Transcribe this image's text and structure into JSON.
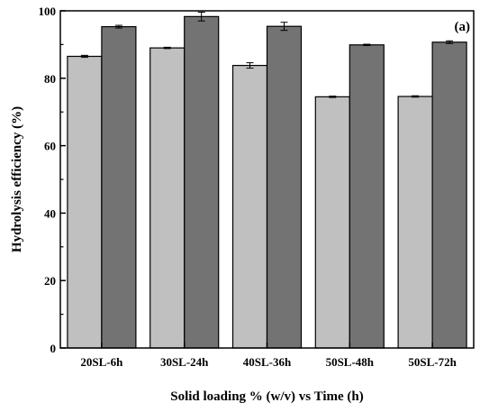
{
  "chart_data": {
    "type": "bar",
    "title": "",
    "panel_label": "(a)",
    "xlabel": "Solid loading % (w/v) vs Time (h)",
    "ylabel": "Hydrolysis efficiency (%)",
    "ylim": [
      0,
      100
    ],
    "yticks": [
      0,
      20,
      40,
      60,
      80,
      100
    ],
    "grid": false,
    "categories": [
      "20SL-6h",
      "30SL-24h",
      "40SL-36h",
      "50SL-48h",
      "50SL-72h"
    ],
    "series": [
      {
        "color": "#c0c0c0",
        "values": [
          86.5,
          89.0,
          83.8,
          74.5,
          74.6
        ],
        "errors": [
          0.3,
          0.2,
          0.8,
          0.2,
          0.2
        ]
      },
      {
        "color": "#737373",
        "values": [
          95.3,
          98.3,
          95.4,
          89.9,
          90.7
        ],
        "errors": [
          0.4,
          1.3,
          1.2,
          0.2,
          0.4
        ]
      }
    ]
  }
}
